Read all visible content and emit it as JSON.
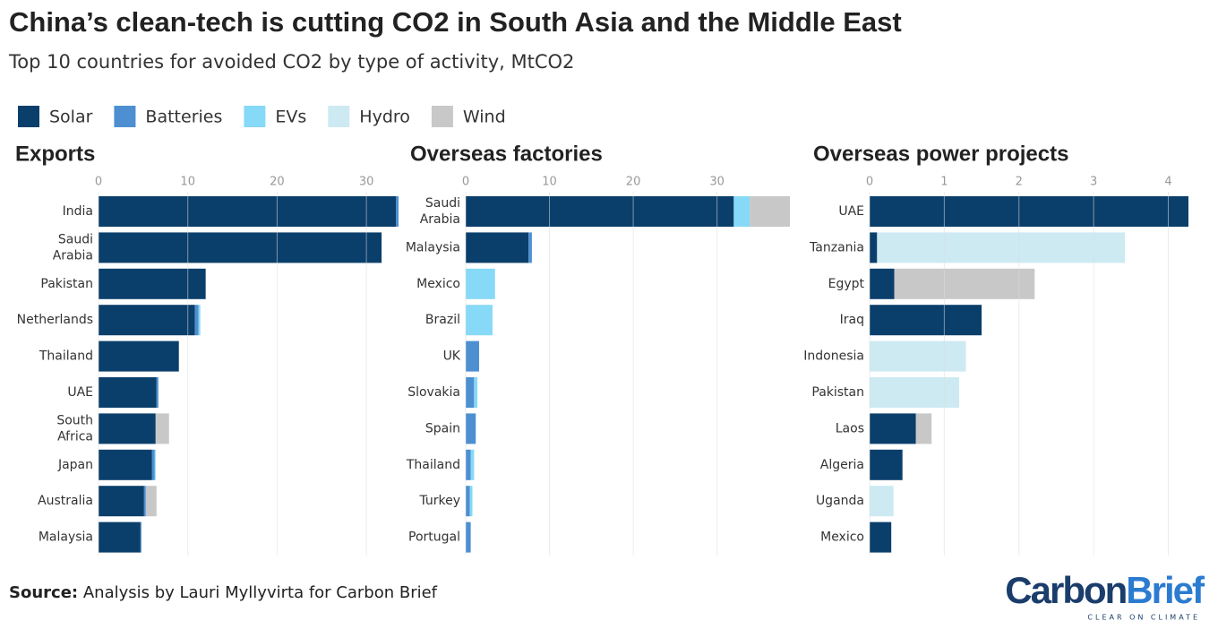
{
  "title": "China’s clean-tech is cutting CO2 in South Asia and the Middle East",
  "subtitle": "Top 10 countries for avoided CO2 by type of activity, MtCO2",
  "source": {
    "label": "Source:",
    "text": "Analysis by Lauri Myllyvirta for Carbon Brief"
  },
  "logo": {
    "first": "Carbon",
    "second": "Brief",
    "tagline": "CLEAR ON CLIMATE"
  },
  "chart_data": [
    {
      "type": "bar",
      "orientation": "horizontal",
      "stacked": true,
      "grid": true,
      "title": "Exports",
      "categories": [
        "India",
        "Saudi Arabia",
        "Pakistan",
        "Netherlands",
        "Thailand",
        "UAE",
        "South Africa",
        "Japan",
        "Australia",
        "Malaysia"
      ],
      "series": [
        {
          "name": "Solar",
          "color": "#0b3f6b",
          "values": [
            33.3,
            31.7,
            12.0,
            10.8,
            9.0,
            6.5,
            6.4,
            6.0,
            5.1,
            4.7
          ]
        },
        {
          "name": "Batteries",
          "color": "#4d8fd1",
          "values": [
            0.3,
            0,
            0,
            0.4,
            0,
            0.2,
            0,
            0.3,
            0.2,
            0.1
          ]
        },
        {
          "name": "EVs",
          "color": "#86d9f7",
          "values": [
            0,
            0,
            0,
            0.2,
            0,
            0,
            0,
            0.1,
            0,
            0
          ]
        },
        {
          "name": "Hydro",
          "color": "#cdeaf3",
          "values": [
            0,
            0,
            0,
            0,
            0,
            0,
            0,
            0,
            0,
            0
          ]
        },
        {
          "name": "Wind",
          "color": "#c8c8c8",
          "values": [
            0,
            0,
            0,
            0,
            0,
            0,
            1.5,
            0,
            1.2,
            0
          ]
        }
      ],
      "xlim": [
        0,
        33.7
      ],
      "xticks": [
        0,
        10,
        20,
        30
      ]
    },
    {
      "type": "bar",
      "orientation": "horizontal",
      "stacked": true,
      "grid": true,
      "title": "Overseas factories",
      "categories": [
        "Saudi Arabia",
        "Malaysia",
        "Mexico",
        "Brazil",
        "UK",
        "Slovakia",
        "Spain",
        "Thailand",
        "Turkey",
        "Portugal"
      ],
      "series": [
        {
          "name": "Solar",
          "color": "#0b3f6b",
          "values": [
            32.0,
            7.5,
            0,
            0,
            0,
            0,
            0,
            0,
            0,
            0
          ]
        },
        {
          "name": "Batteries",
          "color": "#4d8fd1",
          "values": [
            0,
            0.4,
            0,
            0,
            1.6,
            1.0,
            1.2,
            0.6,
            0.5,
            0.6
          ]
        },
        {
          "name": "EVs",
          "color": "#86d9f7",
          "values": [
            1.9,
            0,
            3.5,
            3.2,
            0,
            0.4,
            0,
            0.4,
            0.3,
            0
          ]
        },
        {
          "name": "Hydro",
          "color": "#cdeaf3",
          "values": [
            0,
            0,
            0,
            0,
            0,
            0,
            0,
            0,
            0,
            0
          ]
        },
        {
          "name": "Wind",
          "color": "#c8c8c8",
          "values": [
            4.8,
            0,
            0,
            0,
            0,
            0,
            0,
            0,
            0,
            0
          ]
        }
      ],
      "xlim": [
        0,
        38.7
      ],
      "xticks": [
        0,
        10,
        20,
        30
      ]
    },
    {
      "type": "bar",
      "orientation": "horizontal",
      "stacked": true,
      "grid": true,
      "title": "Overseas power projects",
      "categories": [
        "UAE",
        "Tanzania",
        "Egypt",
        "Iraq",
        "Indonesia",
        "Pakistan",
        "Laos",
        "Algeria",
        "Uganda",
        "Mexico"
      ],
      "series": [
        {
          "name": "Solar",
          "color": "#0b3f6b",
          "values": [
            4.27,
            0.1,
            0.33,
            1.5,
            0,
            0,
            0.62,
            0.44,
            0,
            0.29
          ]
        },
        {
          "name": "Batteries",
          "color": "#4d8fd1",
          "values": [
            0,
            0,
            0,
            0,
            0,
            0,
            0,
            0,
            0,
            0
          ]
        },
        {
          "name": "EVs",
          "color": "#86d9f7",
          "values": [
            0,
            0,
            0,
            0,
            0,
            0,
            0,
            0,
            0,
            0
          ]
        },
        {
          "name": "Hydro",
          "color": "#cdeaf3",
          "values": [
            0,
            3.32,
            0,
            0,
            1.29,
            1.2,
            0,
            0,
            0.32,
            0
          ]
        },
        {
          "name": "Wind",
          "color": "#c8c8c8",
          "values": [
            0,
            0,
            1.88,
            0,
            0,
            0,
            0.21,
            0,
            0,
            0
          ]
        }
      ],
      "xlim": [
        0,
        4.27
      ],
      "xticks": [
        0,
        1,
        2,
        3,
        4
      ]
    }
  ]
}
